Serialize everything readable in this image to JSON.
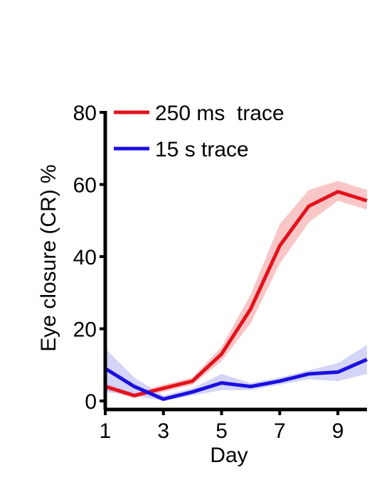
{
  "chart_data": {
    "type": "line",
    "xlabel": "Day",
    "ylabel": "Eye closure (CR) %",
    "xlim": [
      1,
      10
    ],
    "ylim": [
      0,
      80
    ],
    "xticks": [
      1,
      3,
      5,
      7,
      9
    ],
    "yticks": [
      0,
      20,
      40,
      60,
      80
    ],
    "x": [
      1,
      2,
      3,
      4,
      5,
      6,
      7,
      8,
      9,
      10
    ],
    "legend_position": "top-left",
    "series": [
      {
        "name": "250 ms  trace",
        "color": "#e3121b",
        "band_color": "#f7b3b6",
        "values": [
          4,
          1.5,
          3.5,
          5.5,
          13,
          25.5,
          43,
          54,
          58,
          55.5
        ],
        "lower": [
          3,
          0.8,
          2.5,
          4.5,
          11,
          21.5,
          38,
          49.5,
          55.5,
          53
        ],
        "upper": [
          5,
          2.2,
          4.5,
          6.5,
          15,
          29.5,
          49,
          58.5,
          61,
          58.5
        ]
      },
      {
        "name": "15 s trace",
        "color": "#1a0fe0",
        "band_color": "#c6c6f5",
        "values": [
          9,
          4,
          0.5,
          2.5,
          5,
          4,
          5.5,
          7.5,
          8,
          11.5
        ],
        "lower": [
          2.5,
          1.5,
          0,
          1.5,
          3,
          3,
          4.5,
          6,
          5.5,
          7.5
        ],
        "upper": [
          14.5,
          6.5,
          1.5,
          3.5,
          7.5,
          5,
          6.5,
          8.5,
          10.5,
          15.5
        ]
      }
    ]
  }
}
